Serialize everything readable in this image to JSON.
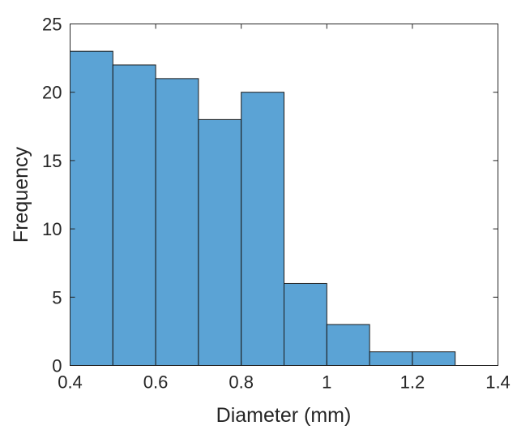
{
  "chart_data": {
    "type": "bar",
    "title": "",
    "xlabel": "Diameter (mm)",
    "ylabel": "Frequency",
    "xlim": [
      0.4,
      1.4
    ],
    "ylim": [
      0,
      25
    ],
    "bin_edges": [
      0.4,
      0.5,
      0.6,
      0.7,
      0.8,
      0.9,
      1.0,
      1.1,
      1.2,
      1.3
    ],
    "values": [
      23,
      22,
      21,
      18,
      20,
      6,
      3,
      1,
      1
    ],
    "xticks": [
      0.4,
      0.6,
      0.8,
      1.0,
      1.2,
      1.4
    ],
    "xtick_labels": [
      "0.4",
      "0.6",
      "0.8",
      "1",
      "1.2",
      "1.4"
    ],
    "yticks": [
      0,
      5,
      10,
      15,
      20,
      25
    ],
    "ytick_labels": [
      "0",
      "5",
      "10",
      "15",
      "20",
      "25"
    ],
    "bar_color": "#5BA3D5",
    "grid": false,
    "legend": "none"
  }
}
